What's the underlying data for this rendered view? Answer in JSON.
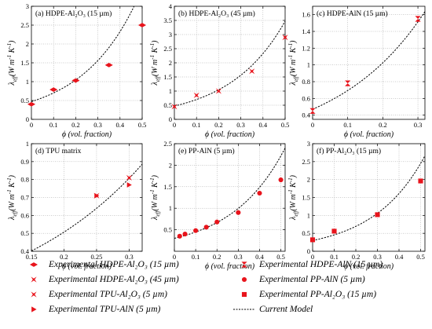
{
  "figure": {
    "y_axis_label_main": "λ",
    "y_axis_label_sub": "eff",
    "y_axis_label_units": "(W m",
    "y_axis_label_tail": " K",
    "y_axis_label_end": ")",
    "x_axis_label": "ϕ (vol. fraction)",
    "colors": {
      "data": "#e8141c",
      "model": "#000000",
      "grid": "#9a9a9a"
    }
  },
  "chart_data": [
    {
      "type": "scatter",
      "panel_label": "(a) HDPE-Al₂O₃ (15 µm)",
      "xlim": [
        0,
        0.5
      ],
      "ylim": [
        0,
        3
      ],
      "xticks": [
        "0",
        "0.1",
        "0.2",
        "0.3",
        "0.4",
        "0.5"
      ],
      "yticks": [
        "0",
        "0.5",
        "1",
        "1.5",
        "2",
        "2.5",
        "3"
      ],
      "marker": "diamond",
      "points": [
        [
          0,
          0.4
        ],
        [
          0.1,
          0.79
        ],
        [
          0.2,
          1.03
        ],
        [
          0.35,
          1.44
        ],
        [
          0.5,
          2.5
        ]
      ],
      "model": {
        "a": 0.47,
        "b": 4.0
      },
      "grid": true
    },
    {
      "type": "scatter",
      "panel_label": "(b) HDPE-Al₂O₃ (45 µm)",
      "xlim": [
        0,
        0.5
      ],
      "ylim": [
        0,
        4
      ],
      "xticks": [
        "0",
        "0.1",
        "0.2",
        "0.3",
        "0.4",
        "0.5"
      ],
      "yticks": [
        "0",
        "0.5",
        "1",
        "1.5",
        "2",
        "2.5",
        "3",
        "3.5",
        "4"
      ],
      "marker": "xstar",
      "points": [
        [
          0,
          0.45
        ],
        [
          0.1,
          0.85
        ],
        [
          0.2,
          1.0
        ],
        [
          0.35,
          1.7
        ],
        [
          0.5,
          2.9
        ]
      ],
      "model": {
        "a": 0.47,
        "b": 4.0
      },
      "grid": true
    },
    {
      "type": "scatter",
      "panel_label": "(c) HDPE-AlN (15 µm)",
      "xlim": [
        0,
        0.32
      ],
      "ylim": [
        0.35,
        1.7
      ],
      "xticks": [
        "0",
        "0.1",
        "0.2",
        "0.3"
      ],
      "yticks": [
        "0.4",
        "0.6",
        "0.8",
        "1",
        "1.2",
        "1.4",
        "1.6"
      ],
      "yticks_values": [
        0.4,
        0.6,
        0.8,
        1.0,
        1.2,
        1.4,
        1.6
      ],
      "xticks_values": [
        0,
        0.1,
        0.2,
        0.3
      ],
      "marker": "hourglass",
      "points": [
        [
          0,
          0.45
        ],
        [
          0.1,
          0.78
        ],
        [
          0.3,
          1.55
        ]
      ],
      "model": {
        "a": 0.47,
        "b": 3.9
      },
      "grid": true
    },
    {
      "type": "scatter",
      "panel_label": "(d) TPU matrix",
      "xlim": [
        0.15,
        0.32
      ],
      "ylim": [
        0.4,
        1.0
      ],
      "xticks": [
        "0.15",
        "0.2",
        "0.25",
        "0.3"
      ],
      "xticks_values": [
        0.15,
        0.2,
        0.25,
        0.3
      ],
      "yticks": [
        "0.4",
        "0.5",
        "0.6",
        "0.7",
        "0.8",
        "0.9",
        "1"
      ],
      "yticks_values": [
        0.4,
        0.5,
        0.6,
        0.7,
        0.8,
        0.9,
        1.0
      ],
      "marker": "xstar",
      "points": [
        [
          0.25,
          0.71
        ],
        [
          0.3,
          0.81
        ]
      ],
      "marker2": "triangle",
      "points2": [
        [
          0.25,
          0.71
        ],
        [
          0.3,
          0.77
        ]
      ],
      "model": {
        "a": 0.2,
        "b": 4.65
      },
      "grid": true
    },
    {
      "type": "scatter",
      "panel_label": "(e) PP-AlN (5 µm)",
      "xlim": [
        0,
        0.52
      ],
      "ylim": [
        0,
        2.5
      ],
      "xticks": [
        "0",
        "0.1",
        "0.2",
        "0.3",
        "0.4",
        "0.5"
      ],
      "xticks_values": [
        0,
        0.1,
        0.2,
        0.3,
        0.4,
        0.5
      ],
      "yticks": [
        "0.5",
        "1",
        "1.5",
        "2",
        "2.5"
      ],
      "yticks_values": [
        0.5,
        1.0,
        1.5,
        2.0,
        2.5
      ],
      "marker": "circle",
      "points": [
        [
          0.025,
          0.35
        ],
        [
          0.05,
          0.4
        ],
        [
          0.1,
          0.48
        ],
        [
          0.15,
          0.56
        ],
        [
          0.2,
          0.68
        ],
        [
          0.3,
          0.9
        ],
        [
          0.4,
          1.35
        ],
        [
          0.5,
          1.66
        ]
      ],
      "model": {
        "a": 0.3,
        "b": 4.0
      },
      "grid": true
    },
    {
      "type": "scatter",
      "panel_label": "(f) PP-Al₂O₃ (15 µm)",
      "xlim": [
        0,
        0.52
      ],
      "ylim": [
        0,
        3
      ],
      "xticks": [
        "0",
        "0.1",
        "0.2",
        "0.3",
        "0.4",
        "0.5"
      ],
      "xticks_values": [
        0,
        0.1,
        0.2,
        0.3,
        0.4,
        0.5
      ],
      "yticks": [
        "0",
        "0.5",
        "1",
        "1.5",
        "2",
        "2.5",
        "3"
      ],
      "yticks_values": [
        0,
        0.5,
        1,
        1.5,
        2,
        2.5,
        3
      ],
      "marker": "square",
      "points": [
        [
          0,
          0.32
        ],
        [
          0.1,
          0.56
        ],
        [
          0.3,
          1.02
        ],
        [
          0.5,
          1.96
        ]
      ],
      "model": {
        "a": 0.3,
        "b": 4.2
      },
      "grid": true
    }
  ],
  "legend": {
    "left": [
      {
        "marker": "diamond",
        "label": "Experimental HDPE-Al₂O₃ (15 µm)"
      },
      {
        "marker": "xstar",
        "label": "Experimental HDPE-Al₂O₃ (45 µm)"
      },
      {
        "marker": "xstar",
        "label": "Experimental TPU-Al₂O₃ (5 µm)"
      },
      {
        "marker": "triangle",
        "label": "Experimental TPU-AlN (5 µm)"
      }
    ],
    "right": [
      {
        "marker": "hourglass",
        "label": "Experimental HDPE-AlN (15 µm)"
      },
      {
        "marker": "circle",
        "label": "Experimental PP-AlN (5 µm)"
      },
      {
        "marker": "square",
        "label": "Experimental PP-Al₂O₃ (15 µm)"
      },
      {
        "marker": "line",
        "label": "Current Model"
      }
    ]
  }
}
